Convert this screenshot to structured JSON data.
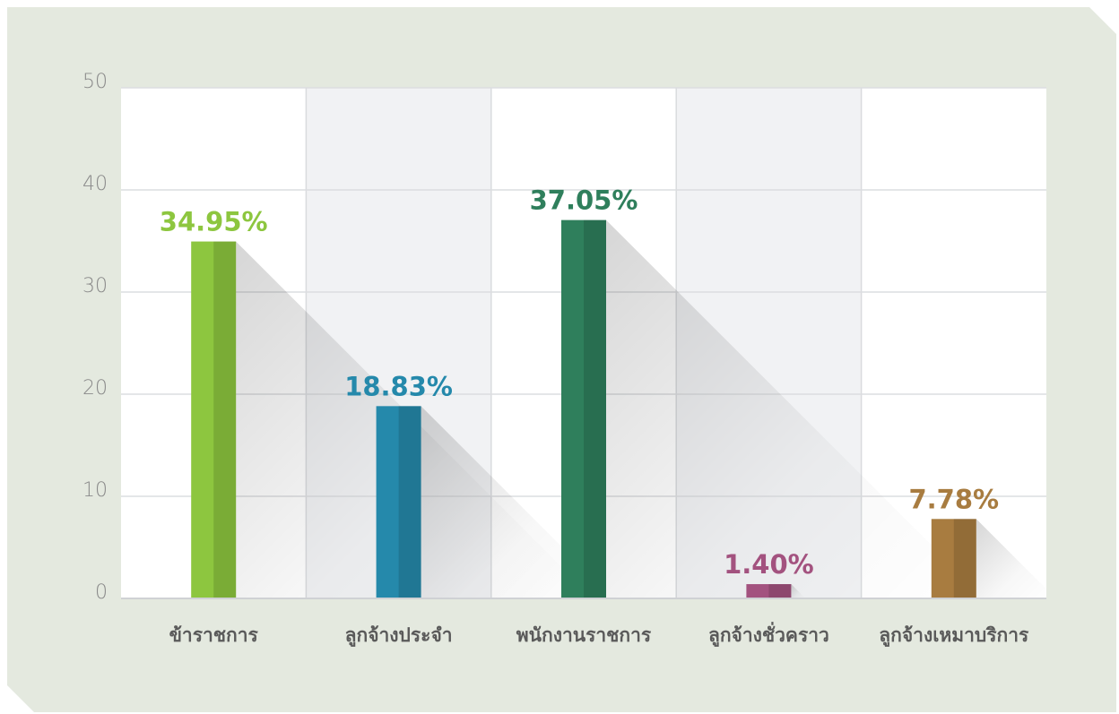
{
  "chart_data": {
    "type": "bar",
    "categories": [
      "ข้าราชการ",
      "ลูกจ้างประจำ",
      "พนักงานราชการ",
      "ลูกจ้างชั่วคราว",
      "ลูกจ้างเหมาบริการ"
    ],
    "values": [
      34.95,
      18.83,
      37.05,
      1.4,
      7.78
    ],
    "value_labels": [
      "34.95%",
      "18.83%",
      "37.05%",
      "1.40%",
      "7.78%"
    ],
    "colors": [
      "#8dc63f",
      "#2589ab",
      "#2f7f5c",
      "#a3527f",
      "#a87c40"
    ],
    "ylim": [
      0,
      50
    ],
    "yticks": [
      0,
      10,
      20,
      30,
      40,
      50
    ],
    "grid": true
  }
}
